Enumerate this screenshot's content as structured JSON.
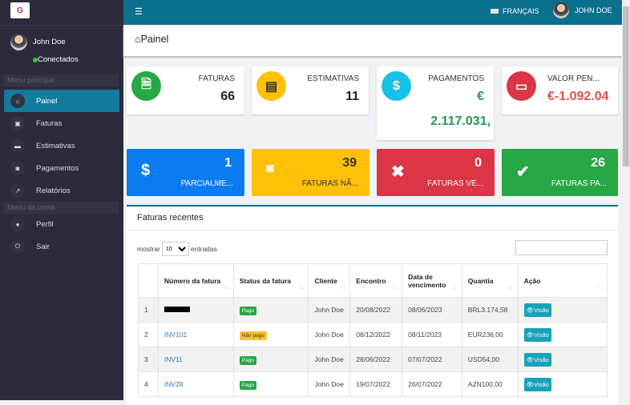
{
  "sidebar": {
    "user": "John Doe",
    "status": "Conectados",
    "sections": [
      "Menu principal",
      "Menu da conta"
    ],
    "items": [
      {
        "label": "Painel",
        "icon": "home-icon"
      },
      {
        "label": "Faturas",
        "icon": "file-pdf-icon"
      },
      {
        "label": "Estimativas",
        "icon": "list-icon"
      },
      {
        "label": "Pagamentos",
        "icon": "money-icon"
      },
      {
        "label": "Relatórios",
        "icon": "chart-icon"
      },
      {
        "label": "Perfil",
        "icon": "user-icon"
      },
      {
        "label": "Sair",
        "icon": "power-icon"
      }
    ]
  },
  "topbar": {
    "language": "FRANÇAIS",
    "user": "JOHN DOE"
  },
  "page": {
    "title": "Painel"
  },
  "stats": [
    {
      "label": "FATURAS",
      "value": "66",
      "color": "#28a745"
    },
    {
      "label": "ESTIMATIVAS",
      "value": "11",
      "color": "#ffc107"
    },
    {
      "label": "PAGAMENTOS",
      "value": "€",
      "value2": "2.117.031,",
      "color": "#17c1e8"
    },
    {
      "label": "VALOR PEN...",
      "value": "€-1.092.04",
      "color": "#dc3545"
    }
  ],
  "boxes": [
    {
      "value": "1",
      "label": "PARCIALME...",
      "color": "#0d7bf0"
    },
    {
      "value": "39",
      "label": "FATURAS NÃ...",
      "color": "#ffc107"
    },
    {
      "value": "0",
      "label": "FATURAS VE...",
      "color": "#dc3545"
    },
    {
      "value": "26",
      "label": "FATURAS PA...",
      "color": "#28a745"
    }
  ],
  "recent": {
    "title": "Faturas recentes",
    "show": "mostrar",
    "entries": "entradas",
    "page_size": "10",
    "columns": [
      "",
      "Número da fatura",
      "Status da fatura",
      "Cliente",
      "Encontro",
      "Data de vencimento",
      "Quantia",
      "Ação"
    ],
    "rows": [
      {
        "n": "1",
        "inv": "",
        "status": "Pago",
        "client": "John Doe",
        "date": "20/08/2022",
        "due": "08/06/2023",
        "amount": "BRL3.174,58",
        "action": "Visão"
      },
      {
        "n": "2",
        "inv": "INV101",
        "status": "Não pago",
        "client": "John Doe",
        "date": "08/12/2022",
        "due": "08/11/2023",
        "amount": "EUR236,00",
        "action": "Visão"
      },
      {
        "n": "3",
        "inv": "INV11",
        "status": "Pago",
        "client": "John Doe",
        "date": "28/06/2022",
        "due": "07/07/2022",
        "amount": "USD54,00",
        "action": "Visão"
      },
      {
        "n": "4",
        "inv": "INV28",
        "status": "Pago",
        "client": "John Doe",
        "date": "19/07/2022",
        "due": "26/07/2022",
        "amount": "AZN100,00",
        "action": "Visão"
      }
    ]
  }
}
